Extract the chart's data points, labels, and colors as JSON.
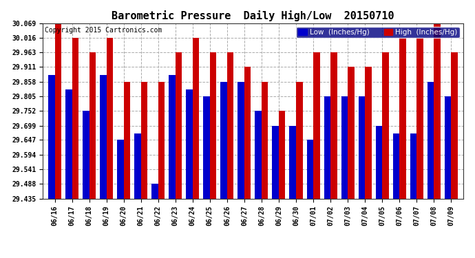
{
  "title": "Barometric Pressure  Daily High/Low  20150710",
  "copyright": "Copyright 2015 Cartronics.com",
  "legend_low": "Low  (Inches/Hg)",
  "legend_high": "High  (Inches/Hg)",
  "dates": [
    "06/16",
    "06/17",
    "06/18",
    "06/19",
    "06/20",
    "06/21",
    "06/22",
    "06/23",
    "06/24",
    "06/25",
    "06/26",
    "06/27",
    "06/28",
    "06/29",
    "06/30",
    "07/01",
    "07/02",
    "07/03",
    "07/04",
    "07/05",
    "07/06",
    "07/07",
    "07/08",
    "07/09"
  ],
  "high": [
    30.069,
    30.016,
    29.963,
    30.016,
    29.858,
    29.858,
    29.858,
    29.963,
    30.016,
    29.963,
    29.963,
    29.911,
    29.858,
    29.752,
    29.858,
    29.963,
    29.963,
    29.911,
    29.911,
    29.963,
    30.016,
    30.016,
    30.069,
    29.963
  ],
  "low": [
    29.882,
    29.829,
    29.752,
    29.882,
    29.647,
    29.67,
    29.488,
    29.882,
    29.829,
    29.805,
    29.858,
    29.858,
    29.752,
    29.699,
    29.699,
    29.647,
    29.805,
    29.805,
    29.805,
    29.699,
    29.67,
    29.67,
    29.858,
    29.805
  ],
  "low_color": "#0000cc",
  "high_color": "#cc0000",
  "bg_color": "#ffffff",
  "grid_color": "#aaaaaa",
  "yticks": [
    29.435,
    29.488,
    29.541,
    29.594,
    29.647,
    29.699,
    29.752,
    29.805,
    29.858,
    29.911,
    29.963,
    30.016,
    30.069
  ],
  "ymin": 29.435,
  "ymax": 30.069,
  "title_fontsize": 11,
  "copyright_fontsize": 7,
  "legend_fontsize": 7.5,
  "tick_fontsize": 7
}
